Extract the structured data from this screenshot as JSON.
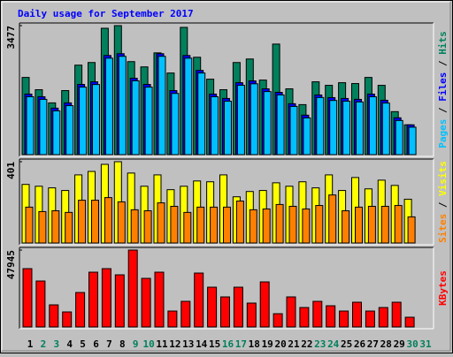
{
  "separator": "/",
  "chart_data": [
    {
      "type": "bar",
      "title": "Daily usage for September 2017",
      "ylim": [
        0,
        3477
      ],
      "yticks": [
        3477
      ],
      "series": [
        {
          "name": "Hits",
          "color": "#00805c",
          "values": [
            2081,
            1750,
            1395,
            1726,
            2412,
            2483,
            3406,
            3477,
            2507,
            2365,
            2743,
            2200,
            3430,
            2625,
            2034,
            1750,
            2483,
            2578,
            2010,
            2980,
            1774,
            1348,
            1963,
            1868,
            1939,
            1916,
            2081,
            1868,
            1159,
            804,
            null
          ]
        },
        {
          "name": "Files",
          "color": "#0000ff",
          "values": [
            1632,
            1561,
            1253,
            1395,
            1892,
            1963,
            2672,
            2720,
            2058,
            1892,
            2720,
            1726,
            2672,
            2270,
            1632,
            1514,
            1939,
            1987,
            1774,
            1679,
            1372,
            1064,
            1608,
            1537,
            1514,
            1490,
            1632,
            1466,
            993,
            804,
            null
          ]
        },
        {
          "name": "Pages",
          "color": "#00c0ff",
          "values": [
            1560,
            1490,
            1180,
            1320,
            1820,
            1890,
            2600,
            2650,
            1990,
            1820,
            2650,
            1650,
            2600,
            2200,
            1560,
            1440,
            1870,
            1910,
            1700,
            1610,
            1300,
            990,
            1540,
            1460,
            1440,
            1420,
            1560,
            1390,
            920,
            740,
            null
          ]
        }
      ]
    },
    {
      "type": "bar",
      "ylim": [
        0,
        401
      ],
      "yticks": [
        401
      ],
      "series": [
        {
          "name": "Visits",
          "color": "#ffff00",
          "values": [
            289,
            280,
            272,
            259,
            336,
            353,
            388,
            401,
            345,
            280,
            336,
            263,
            280,
            306,
            302,
            336,
            228,
            254,
            259,
            297,
            280,
            302,
            272,
            336,
            259,
            323,
            267,
            310,
            284,
            216,
            null
          ]
        },
        {
          "name": "Sites",
          "color": "#ff8000",
          "values": [
            177,
            155,
            159,
            151,
            211,
            211,
            224,
            203,
            164,
            159,
            198,
            181,
            151,
            177,
            177,
            177,
            207,
            164,
            168,
            190,
            181,
            168,
            185,
            237,
            159,
            177,
            181,
            181,
            185,
            129,
            null
          ]
        }
      ]
    },
    {
      "type": "bar",
      "ylim": [
        0,
        47945
      ],
      "yticks": [
        47945
      ],
      "categories": [
        "1",
        "2",
        "3",
        "4",
        "5",
        "6",
        "7",
        "8",
        "9",
        "10",
        "11",
        "12",
        "13",
        "14",
        "15",
        "16",
        "17",
        "18",
        "19",
        "20",
        "21",
        "22",
        "23",
        "24",
        "25",
        "26",
        "27",
        "28",
        "29",
        "30",
        "31"
      ],
      "category_colors": [
        "#000000",
        "#00805c",
        "#00805c",
        "#000000",
        "#000000",
        "#000000",
        "#000000",
        "#000000",
        "#00805c",
        "#00805c",
        "#000000",
        "#000000",
        "#000000",
        "#000000",
        "#000000",
        "#00805c",
        "#00805c",
        "#000000",
        "#000000",
        "#000000",
        "#000000",
        "#000000",
        "#00805c",
        "#00805c",
        "#000000",
        "#000000",
        "#000000",
        "#000000",
        "#000000",
        "#00805c",
        "#00805c"
      ],
      "series": [
        {
          "name": "KBytes",
          "color": "#ff0000",
          "values": [
            36366,
            28652,
            13775,
            9367,
            21489,
            34162,
            36366,
            32509,
            47945,
            30305,
            34162,
            9918,
            15979,
            33611,
            24795,
            18734,
            24795,
            14877,
            28101,
            8265,
            18734,
            12122,
            15979,
            13224,
            9918,
            15428,
            9918,
            12122,
            15428,
            6061,
            null
          ]
        }
      ]
    }
  ]
}
